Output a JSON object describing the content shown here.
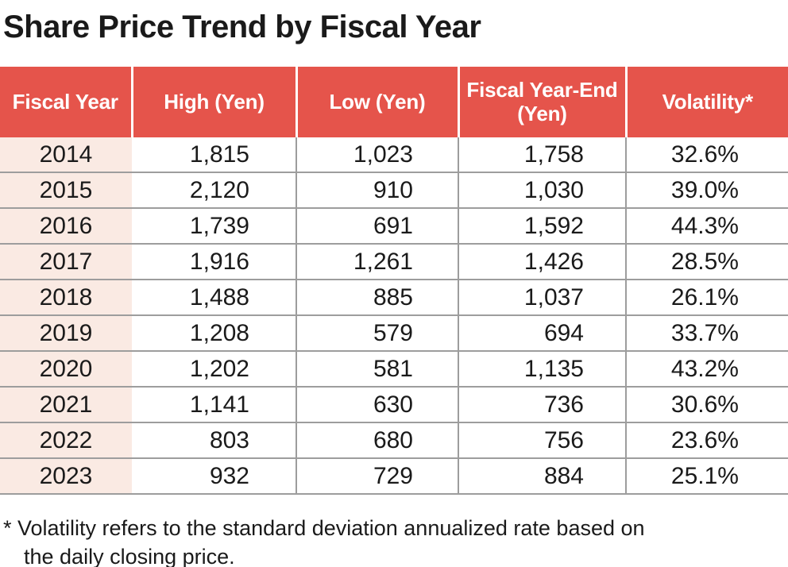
{
  "title": "Share Price Trend by Fiscal Year",
  "table": {
    "columns": [
      {
        "label": "Fiscal Year"
      },
      {
        "label": "High (Yen)"
      },
      {
        "label": "Low (Yen)"
      },
      {
        "label": "Fiscal Year-End (Yen)"
      },
      {
        "label": "Volatility*"
      }
    ],
    "rows": [
      [
        "2014",
        "1,815",
        "1,023",
        "1,758",
        "32.6%"
      ],
      [
        "2015",
        "2,120",
        "910",
        "1,030",
        "39.0%"
      ],
      [
        "2016",
        "1,739",
        "691",
        "1,592",
        "44.3%"
      ],
      [
        "2017",
        "1,916",
        "1,261",
        "1,426",
        "28.5%"
      ],
      [
        "2018",
        "1,488",
        "885",
        "1,037",
        "26.1%"
      ],
      [
        "2019",
        "1,208",
        "579",
        "694",
        "33.7%"
      ],
      [
        "2020",
        "1,202",
        "581",
        "1,135",
        "43.2%"
      ],
      [
        "2021",
        "1,141",
        "630",
        "736",
        "30.6%"
      ],
      [
        "2022",
        "803",
        "680",
        "756",
        "23.6%"
      ],
      [
        "2023",
        "932",
        "729",
        "884",
        "25.1%"
      ]
    ]
  },
  "footnote": {
    "lines": [
      "* Volatility refers to the standard deviation annualized rate based on",
      "the daily closing price."
    ]
  },
  "colors": {
    "header_bg": "#E5544B",
    "header_text": "#FFFFFF",
    "year_column_bg": "#FAEAE3",
    "grid_line": "#9D9D9D",
    "body_text": "#1A1A1A"
  }
}
